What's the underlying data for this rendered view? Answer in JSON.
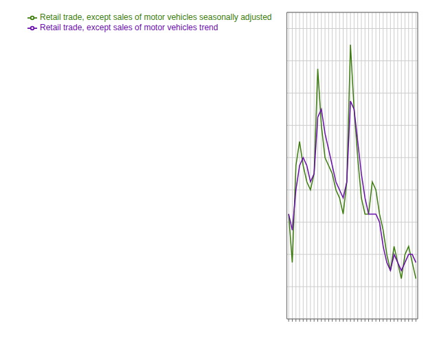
{
  "chart_data": {
    "type": "line",
    "x": [
      0,
      1,
      2,
      3,
      4,
      5,
      6,
      7,
      8,
      9,
      10,
      11,
      12,
      13,
      14,
      15,
      16,
      17,
      18,
      19,
      20,
      21,
      22,
      23,
      24,
      25,
      26,
      27,
      28,
      29,
      30,
      31,
      32,
      33,
      34,
      35
    ],
    "series": [
      {
        "name": "Retail trade, except sales of motor vehicles seasonally adjusted",
        "color": "#3a7d0a",
        "values": [
          97,
          91,
          103,
          106,
          103,
          101,
          100,
          102,
          115,
          108,
          104,
          103,
          102,
          100,
          99,
          97,
          101,
          118,
          110,
          104,
          99,
          97,
          97,
          101,
          100,
          97,
          95,
          92,
          90,
          93,
          91,
          89,
          92,
          93,
          91,
          89
        ]
      },
      {
        "name": "Retail trade, except sales of motor vehicles trend",
        "color": "#6a0dad",
        "values": [
          97,
          95,
          100,
          103,
          104,
          103,
          101,
          102,
          109,
          110,
          107,
          105,
          103,
          101,
          100,
          99,
          101,
          111,
          110,
          106,
          102,
          99,
          97,
          97,
          97,
          96,
          93,
          91,
          90,
          92,
          91,
          90,
          91,
          92,
          92,
          91
        ]
      }
    ],
    "xlim": [
      -0.5,
      35.5
    ],
    "xticks": [
      0,
      1,
      2,
      3,
      4,
      5,
      6,
      7,
      8,
      9,
      10,
      11,
      12,
      13,
      14,
      15,
      16,
      17,
      18,
      19,
      20,
      21,
      22,
      23,
      24,
      25,
      26,
      27,
      28,
      29,
      30,
      31,
      32,
      33,
      34,
      35
    ],
    "ylim": [
      84,
      122
    ],
    "yticks": [
      84,
      88,
      92,
      96,
      100,
      104,
      108,
      112,
      116,
      120
    ],
    "tick_labels": false,
    "grid": true,
    "legend": "upper left"
  }
}
